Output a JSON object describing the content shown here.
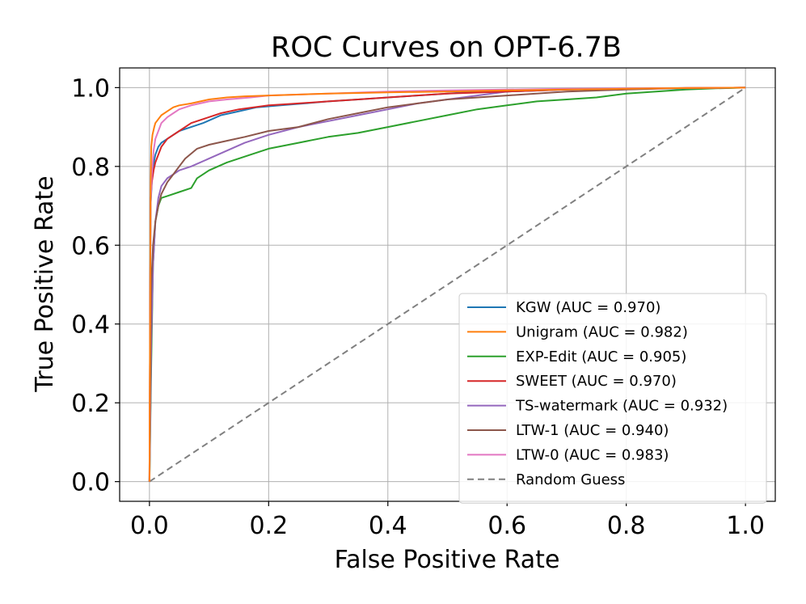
{
  "chart_data": {
    "type": "line",
    "title": "ROC Curves on OPT-6.7B",
    "xlabel": "False Positive Rate",
    "ylabel": "True Positive Rate",
    "xlim": [
      -0.05,
      1.05
    ],
    "ylim": [
      -0.05,
      1.05
    ],
    "xticks": [
      0.0,
      0.2,
      0.4,
      0.6,
      0.8,
      1.0
    ],
    "yticks": [
      0.0,
      0.2,
      0.4,
      0.6,
      0.8,
      1.0
    ],
    "xtick_labels": [
      "0.0",
      "0.2",
      "0.4",
      "0.6",
      "0.8",
      "1.0"
    ],
    "ytick_labels": [
      "0.0",
      "0.2",
      "0.4",
      "0.6",
      "0.8",
      "1.0"
    ],
    "grid": true,
    "legend_position": "lower-right",
    "series": [
      {
        "name": "KGW",
        "label": "KGW (AUC = 0.970)",
        "color": "#1f77b4",
        "x": [
          0,
          0.002,
          0.004,
          0.006,
          0.01,
          0.015,
          0.02,
          0.03,
          0.05,
          0.07,
          0.09,
          0.12,
          0.15,
          0.18,
          0.22,
          0.26,
          0.3,
          0.35,
          0.4,
          0.45,
          0.5,
          0.55,
          0.6,
          0.7,
          0.8,
          0.9,
          1.0
        ],
        "y": [
          0,
          0.7,
          0.76,
          0.8,
          0.83,
          0.85,
          0.86,
          0.87,
          0.89,
          0.9,
          0.91,
          0.93,
          0.94,
          0.95,
          0.955,
          0.96,
          0.965,
          0.97,
          0.975,
          0.98,
          0.985,
          0.99,
          0.99,
          0.995,
          0.997,
          0.998,
          1.0
        ]
      },
      {
        "name": "Unigram",
        "label": "Unigram (AUC = 0.982)",
        "color": "#ff7f0e",
        "x": [
          0,
          0.002,
          0.003,
          0.005,
          0.008,
          0.01,
          0.015,
          0.02,
          0.03,
          0.04,
          0.05,
          0.07,
          0.1,
          0.13,
          0.16,
          0.2,
          0.3,
          0.4,
          0.5,
          0.6,
          0.7,
          0.8,
          0.9,
          1.0
        ],
        "y": [
          0,
          0.75,
          0.85,
          0.88,
          0.9,
          0.91,
          0.92,
          0.93,
          0.94,
          0.95,
          0.955,
          0.96,
          0.97,
          0.975,
          0.978,
          0.98,
          0.985,
          0.988,
          0.99,
          0.993,
          0.995,
          0.997,
          0.999,
          1.0
        ]
      },
      {
        "name": "EXP-Edit",
        "label": "EXP-Edit (AUC = 0.905)",
        "color": "#2ca02c",
        "x": [
          0,
          0.003,
          0.006,
          0.01,
          0.015,
          0.02,
          0.03,
          0.05,
          0.07,
          0.08,
          0.1,
          0.13,
          0.17,
          0.2,
          0.25,
          0.3,
          0.35,
          0.4,
          0.45,
          0.5,
          0.55,
          0.6,
          0.65,
          0.7,
          0.75,
          0.8,
          0.85,
          0.9,
          0.95,
          1.0
        ],
        "y": [
          0,
          0.3,
          0.55,
          0.66,
          0.7,
          0.72,
          0.725,
          0.735,
          0.745,
          0.77,
          0.79,
          0.81,
          0.83,
          0.845,
          0.86,
          0.875,
          0.885,
          0.9,
          0.915,
          0.93,
          0.945,
          0.955,
          0.965,
          0.97,
          0.975,
          0.985,
          0.99,
          0.995,
          0.998,
          1.0
        ]
      },
      {
        "name": "SWEET",
        "label": "SWEET (AUC = 0.970)",
        "color": "#d62728",
        "x": [
          0,
          0.002,
          0.004,
          0.007,
          0.01,
          0.015,
          0.02,
          0.03,
          0.05,
          0.07,
          0.09,
          0.12,
          0.15,
          0.2,
          0.25,
          0.3,
          0.35,
          0.4,
          0.5,
          0.6,
          0.7,
          0.8,
          0.9,
          1.0
        ],
        "y": [
          0,
          0.72,
          0.76,
          0.79,
          0.81,
          0.83,
          0.85,
          0.87,
          0.89,
          0.91,
          0.92,
          0.935,
          0.945,
          0.955,
          0.96,
          0.965,
          0.97,
          0.975,
          0.985,
          0.99,
          0.995,
          0.997,
          0.999,
          1.0
        ]
      },
      {
        "name": "TS-watermark",
        "label": "TS-watermark (AUC = 0.932)",
        "color": "#9467bd",
        "x": [
          0,
          0.003,
          0.006,
          0.01,
          0.015,
          0.02,
          0.03,
          0.04,
          0.05,
          0.07,
          0.1,
          0.13,
          0.16,
          0.2,
          0.25,
          0.3,
          0.35,
          0.4,
          0.45,
          0.5,
          0.55,
          0.6,
          0.7,
          0.8,
          0.9,
          1.0
        ],
        "y": [
          0,
          0.35,
          0.55,
          0.66,
          0.72,
          0.75,
          0.77,
          0.78,
          0.79,
          0.8,
          0.82,
          0.84,
          0.86,
          0.88,
          0.9,
          0.915,
          0.93,
          0.945,
          0.96,
          0.97,
          0.98,
          0.99,
          0.995,
          0.997,
          0.999,
          1.0
        ]
      },
      {
        "name": "LTW-1",
        "label": "LTW-1 (AUC = 0.940)",
        "color": "#8c564b",
        "x": [
          0,
          0.003,
          0.006,
          0.01,
          0.015,
          0.02,
          0.03,
          0.04,
          0.05,
          0.06,
          0.08,
          0.1,
          0.13,
          0.16,
          0.2,
          0.25,
          0.3,
          0.35,
          0.4,
          0.45,
          0.5,
          0.6,
          0.7,
          0.8,
          0.9,
          1.0
        ],
        "y": [
          0,
          0.5,
          0.6,
          0.66,
          0.7,
          0.73,
          0.76,
          0.78,
          0.8,
          0.82,
          0.845,
          0.855,
          0.865,
          0.875,
          0.89,
          0.9,
          0.92,
          0.935,
          0.95,
          0.96,
          0.97,
          0.98,
          0.99,
          0.995,
          0.999,
          1.0
        ]
      },
      {
        "name": "LTW-0",
        "label": "LTW-0 (AUC = 0.983)",
        "color": "#e377c2",
        "x": [
          0,
          0.002,
          0.004,
          0.007,
          0.01,
          0.015,
          0.02,
          0.03,
          0.04,
          0.05,
          0.07,
          0.1,
          0.13,
          0.17,
          0.2,
          0.3,
          0.4,
          0.5,
          0.6,
          0.7,
          0.8,
          0.9,
          1.0
        ],
        "y": [
          0,
          0.7,
          0.78,
          0.84,
          0.87,
          0.89,
          0.91,
          0.925,
          0.935,
          0.945,
          0.955,
          0.965,
          0.97,
          0.975,
          0.98,
          0.985,
          0.99,
          0.993,
          0.995,
          0.997,
          0.998,
          0.999,
          1.0
        ]
      },
      {
        "name": "Random Guess",
        "label": "Random Guess",
        "color": "#808080",
        "dashed": true,
        "x": [
          0,
          1
        ],
        "y": [
          0,
          1
        ]
      }
    ]
  }
}
